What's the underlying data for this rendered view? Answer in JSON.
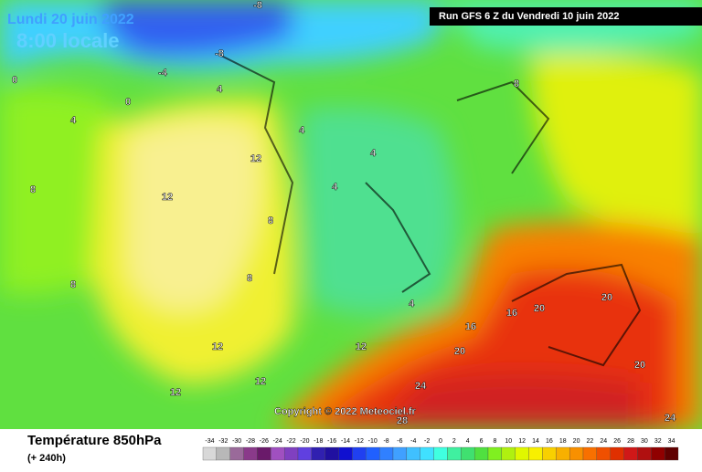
{
  "header": {
    "date": "Lundi 20 juin 2022",
    "time": "8:00 locale",
    "run": "Run GFS 6 Z du Vendredi 10 juin 2022",
    "copyright": "Copyright © 2022 Meteociel.fr"
  },
  "contour_labels": [
    "-8",
    "-8",
    "-4",
    "0",
    "0",
    "4",
    "4",
    "4",
    "4",
    "4",
    "4",
    "8",
    "8",
    "8",
    "8",
    "8",
    "12",
    "12",
    "12",
    "12",
    "12",
    "12",
    "16",
    "16",
    "20",
    "20",
    "20",
    "20",
    "24",
    "24",
    "28"
  ],
  "legend": {
    "title": "Température 850hPa",
    "subtitle": "(+ 240h)",
    "values": [
      -34,
      -32,
      -30,
      -28,
      -26,
      -24,
      -22,
      -20,
      -18,
      -16,
      -14,
      -12,
      -10,
      -8,
      -6,
      -4,
      -2,
      0,
      2,
      4,
      6,
      8,
      10,
      12,
      14,
      16,
      18,
      20,
      22,
      24,
      26,
      28,
      30,
      32,
      34
    ],
    "colors": [
      "#d8d8d8",
      "#b8b8b8",
      "#9a6a9a",
      "#8a3a8a",
      "#6a1a6a",
      "#a050c0",
      "#8040c0",
      "#6040e0",
      "#3020b0",
      "#2010a0",
      "#1010d0",
      "#2040f0",
      "#2060ff",
      "#3080ff",
      "#40a0ff",
      "#40c0ff",
      "#40e0ff",
      "#40ffe0",
      "#40f0a0",
      "#40e070",
      "#50e040",
      "#80f020",
      "#b0f010",
      "#e0f800",
      "#f8f000",
      "#f8d000",
      "#f8b000",
      "#f89000",
      "#f87000",
      "#f05000",
      "#e03000",
      "#d01818",
      "#b01010",
      "#900000",
      "#600000"
    ]
  }
}
